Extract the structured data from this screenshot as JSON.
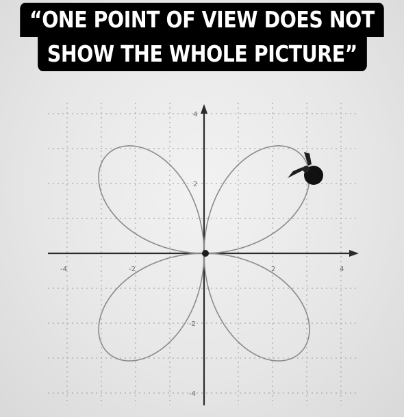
{
  "caption": {
    "line1": "“ONE POINT OF VIEW DOES NOT",
    "line2": "SHOW THE WHOLE PICTURE”"
  },
  "plot": {
    "curve": "polar rose r = 4·sin(2θ) (four petals)",
    "x_range": [
      -4,
      4
    ],
    "y_range": [
      -4,
      4
    ],
    "tick_labels": {
      "x": [
        "-4",
        "-2",
        "2",
        "4"
      ],
      "y": [
        "4",
        "2",
        "-2",
        "-4"
      ]
    },
    "grid": true,
    "grid_step": 1,
    "colors": {
      "curve": "#8a8a8a",
      "axes": "#2a2a2a",
      "grid": "#a8a8a8",
      "caption_bg": "#000000",
      "caption_text": "#ffffff"
    }
  }
}
